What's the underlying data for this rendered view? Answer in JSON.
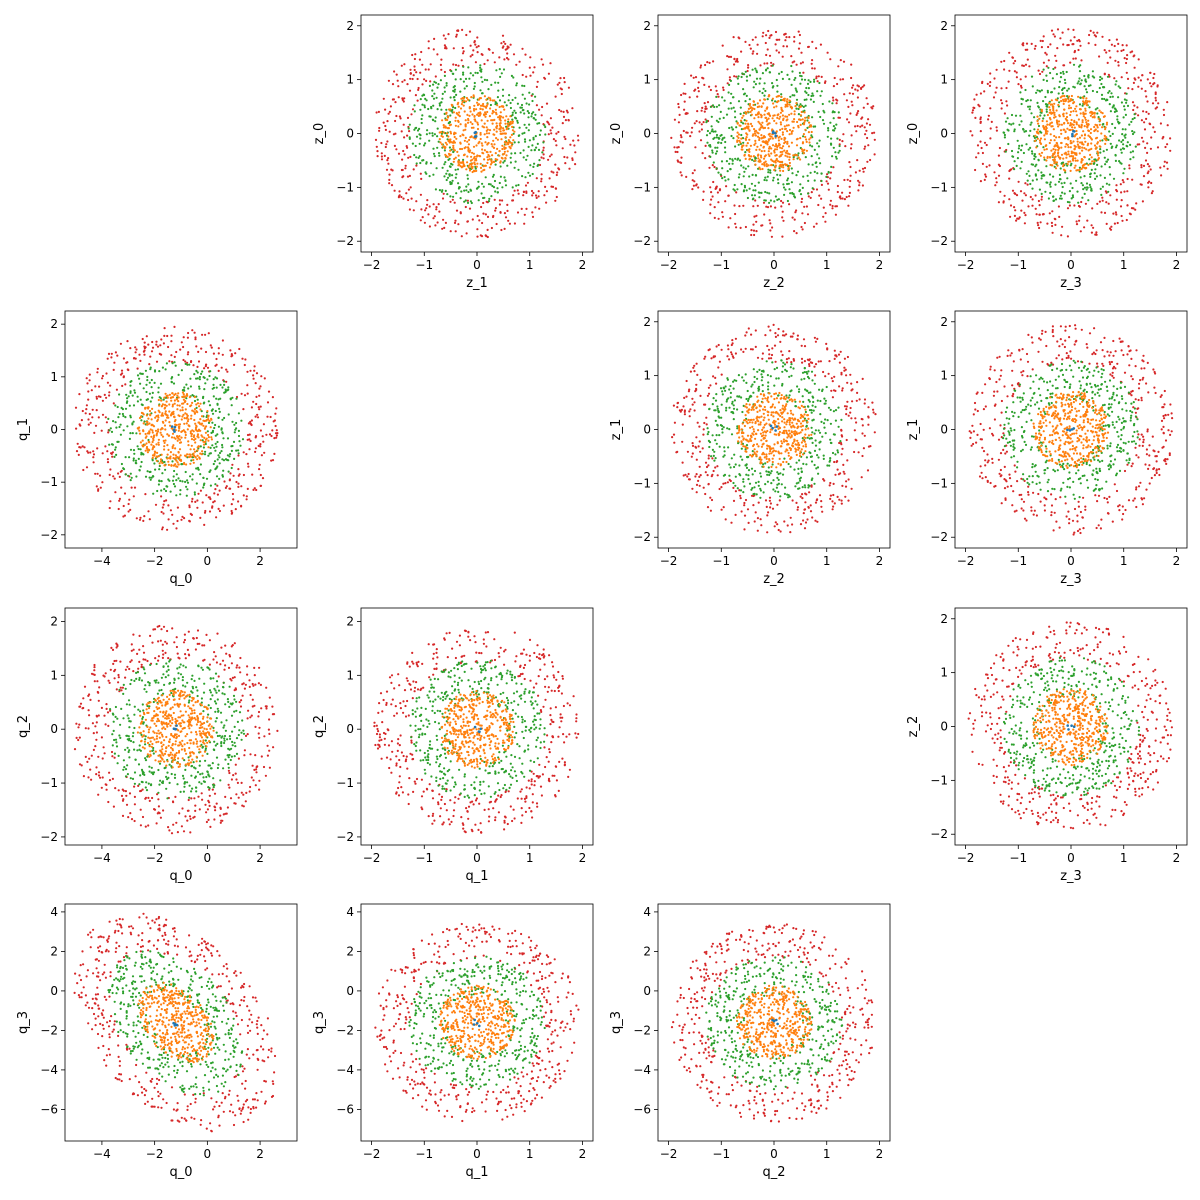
{
  "figure": {
    "point_count_per_ring": 430
  },
  "series_colors": {
    "blue": "#1f77b4",
    "orange": "#ff7f0e",
    "green": "#2ca02c",
    "red": "#d62728"
  },
  "chart_data": [
    {
      "type": "scatter",
      "row": 0,
      "col": 1,
      "xlabel": "z_1",
      "ylabel": "z_0",
      "xlim": [
        -2.2,
        2.2
      ],
      "ylim": [
        -2.2,
        2.2
      ],
      "xticks": [
        -2,
        -1,
        0,
        1,
        2
      ],
      "yticks": [
        -2,
        -1,
        0,
        1,
        2
      ],
      "center": [
        0,
        0
      ],
      "radius": [
        1.0,
        1.0
      ],
      "tilt": 0,
      "seed": 11
    },
    {
      "type": "scatter",
      "row": 0,
      "col": 2,
      "xlabel": "z_2",
      "ylabel": "z_0",
      "xlim": [
        -2.2,
        2.2
      ],
      "ylim": [
        -2.2,
        2.2
      ],
      "xticks": [
        -2,
        -1,
        0,
        1,
        2
      ],
      "yticks": [
        -2,
        -1,
        0,
        1,
        2
      ],
      "center": [
        0,
        0
      ],
      "radius": [
        1.0,
        1.0
      ],
      "tilt": 0,
      "seed": 23
    },
    {
      "type": "scatter",
      "row": 0,
      "col": 3,
      "xlabel": "z_3",
      "ylabel": "z_0",
      "xlim": [
        -2.2,
        2.2
      ],
      "ylim": [
        -2.2,
        2.2
      ],
      "xticks": [
        -2,
        -1,
        0,
        1,
        2
      ],
      "yticks": [
        -2,
        -1,
        0,
        1,
        2
      ],
      "center": [
        0,
        0
      ],
      "radius": [
        1.0,
        1.0
      ],
      "tilt": 0,
      "seed": 37
    },
    {
      "type": "scatter",
      "row": 1,
      "col": 0,
      "xlabel": "q_0",
      "ylabel": "q_1",
      "xlim": [
        -5.4,
        3.4
      ],
      "ylim": [
        -2.25,
        2.25
      ],
      "xticks": [
        -4,
        -2,
        0,
        2
      ],
      "yticks": [
        -2,
        -1,
        0,
        1,
        2
      ],
      "center": [
        -1.2,
        0
      ],
      "radius": [
        2.0,
        1.0
      ],
      "tilt": 0,
      "seed": 41
    },
    {
      "type": "scatter",
      "row": 1,
      "col": 2,
      "xlabel": "z_2",
      "ylabel": "z_1",
      "xlim": [
        -2.2,
        2.2
      ],
      "ylim": [
        -2.2,
        2.2
      ],
      "xticks": [
        -2,
        -1,
        0,
        1,
        2
      ],
      "yticks": [
        -2,
        -1,
        0,
        1,
        2
      ],
      "center": [
        0,
        0
      ],
      "radius": [
        1.0,
        1.0
      ],
      "tilt": 0,
      "seed": 53
    },
    {
      "type": "scatter",
      "row": 1,
      "col": 3,
      "xlabel": "z_3",
      "ylabel": "z_1",
      "xlim": [
        -2.2,
        2.2
      ],
      "ylim": [
        -2.2,
        2.2
      ],
      "xticks": [
        -2,
        -1,
        0,
        1,
        2
      ],
      "yticks": [
        -2,
        -1,
        0,
        1,
        2
      ],
      "center": [
        0,
        0
      ],
      "radius": [
        1.0,
        1.0
      ],
      "tilt": 0,
      "seed": 67
    },
    {
      "type": "scatter",
      "row": 2,
      "col": 0,
      "xlabel": "q_0",
      "ylabel": "q_2",
      "xlim": [
        -5.4,
        3.4
      ],
      "ylim": [
        -2.15,
        2.25
      ],
      "xticks": [
        -4,
        -2,
        0,
        2
      ],
      "yticks": [
        -2,
        -1,
        0,
        1,
        2
      ],
      "center": [
        -1.2,
        0
      ],
      "radius": [
        2.0,
        1.0
      ],
      "tilt": 0,
      "seed": 79
    },
    {
      "type": "scatter",
      "row": 2,
      "col": 1,
      "xlabel": "q_1",
      "ylabel": "q_2",
      "xlim": [
        -2.2,
        2.2
      ],
      "ylim": [
        -2.15,
        2.25
      ],
      "xticks": [
        -2,
        -1,
        0,
        1,
        2
      ],
      "yticks": [
        -2,
        -1,
        0,
        1,
        2
      ],
      "center": [
        0,
        0
      ],
      "radius": [
        1.0,
        1.0
      ],
      "tilt": 0,
      "seed": 83
    },
    {
      "type": "scatter",
      "row": 2,
      "col": 3,
      "xlabel": "z_3",
      "ylabel": "z_2",
      "xlim": [
        -2.2,
        2.2
      ],
      "ylim": [
        -2.2,
        2.2
      ],
      "xticks": [
        -2,
        -1,
        0,
        1,
        2
      ],
      "yticks": [
        -2,
        -1,
        0,
        1,
        2
      ],
      "center": [
        0,
        0
      ],
      "radius": [
        1.0,
        1.0
      ],
      "tilt": 0,
      "seed": 97
    },
    {
      "type": "scatter",
      "row": 3,
      "col": 0,
      "xlabel": "q_0",
      "ylabel": "q_3",
      "xlim": [
        -5.4,
        3.4
      ],
      "ylim": [
        -7.6,
        4.4
      ],
      "xticks": [
        -4,
        -2,
        0,
        2
      ],
      "yticks": [
        -6,
        -4,
        -2,
        0,
        2,
        4
      ],
      "center": [
        -1.2,
        -1.6
      ],
      "radius": [
        2.0,
        2.6
      ],
      "tilt": -0.45,
      "seed": 101
    },
    {
      "type": "scatter",
      "row": 3,
      "col": 1,
      "xlabel": "q_1",
      "ylabel": "q_3",
      "xlim": [
        -2.2,
        2.2
      ],
      "ylim": [
        -7.6,
        4.4
      ],
      "xticks": [
        -2,
        -1,
        0,
        1,
        2
      ],
      "yticks": [
        -6,
        -4,
        -2,
        0,
        2,
        4
      ],
      "center": [
        0,
        -1.6
      ],
      "radius": [
        1.0,
        2.6
      ],
      "tilt": 0,
      "seed": 113
    },
    {
      "type": "scatter",
      "row": 3,
      "col": 2,
      "xlabel": "q_2",
      "ylabel": "q_3",
      "xlim": [
        -2.2,
        2.2
      ],
      "ylim": [
        -7.6,
        4.4
      ],
      "xticks": [
        -2,
        -1,
        0,
        1,
        2
      ],
      "yticks": [
        -6,
        -4,
        -2,
        0,
        2,
        4
      ],
      "center": [
        0,
        -1.6
      ],
      "radius": [
        1.0,
        2.6
      ],
      "tilt": 0,
      "seed": 127
    }
  ]
}
